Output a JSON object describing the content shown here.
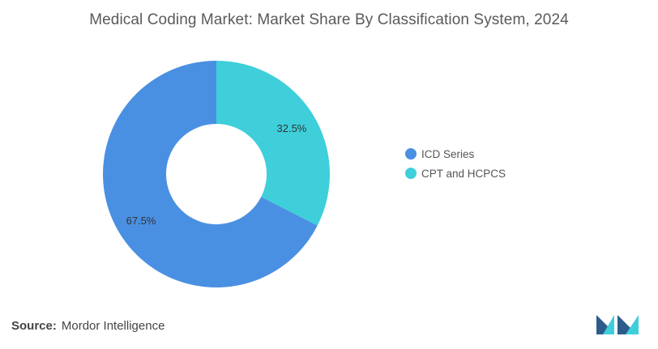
{
  "chart_data": {
    "type": "pie",
    "donut": true,
    "title": "Medical Coding Market: Market Share By Classification System, 2024",
    "categories": [
      "ICD Series",
      "CPT and HCPCS"
    ],
    "values": [
      67.5,
      32.5
    ],
    "value_labels": [
      "67.5%",
      "32.5%"
    ],
    "colors": [
      "#4A90E2",
      "#3ECFDB"
    ],
    "legend_position": "right"
  },
  "source": {
    "label": "Source:",
    "text": "Mordor Intelligence"
  },
  "logo": {
    "icon": "mordor-intelligence-logo-icon",
    "colors": [
      "#2E5C8A",
      "#3ECFDB"
    ]
  }
}
